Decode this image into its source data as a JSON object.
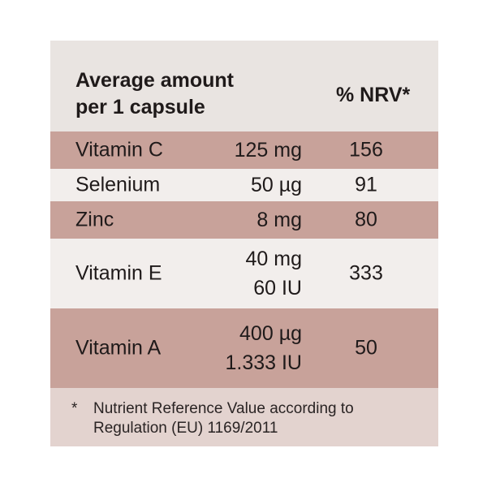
{
  "header": {
    "amount_line1": "Average amount",
    "amount_line2": "per 1 capsule",
    "nrv": "% NRV*"
  },
  "rows": [
    {
      "name": "Vitamin C",
      "amount": [
        "125 mg"
      ],
      "nrv": "156"
    },
    {
      "name": "Selenium",
      "amount": [
        "50 µg"
      ],
      "nrv": "91"
    },
    {
      "name": "Zinc",
      "amount": [
        "8 mg"
      ],
      "nrv": "80"
    },
    {
      "name": "Vitamin E",
      "amount": [
        "40 mg",
        "60 IU"
      ],
      "nrv": "333"
    },
    {
      "name": "Vitamin A",
      "amount": [
        "400 µg",
        "1.333 IU"
      ],
      "nrv": "50"
    }
  ],
  "footnote": {
    "marker": "*",
    "line1": "Nutrient Reference Value according to",
    "line2": "Regulation (EU) 1169/2011"
  },
  "colors": {
    "panel": "#d4b4ad",
    "row_tint": "#c8a29a",
    "row_light": "#f2eeec",
    "text": "#1f1a1a"
  }
}
